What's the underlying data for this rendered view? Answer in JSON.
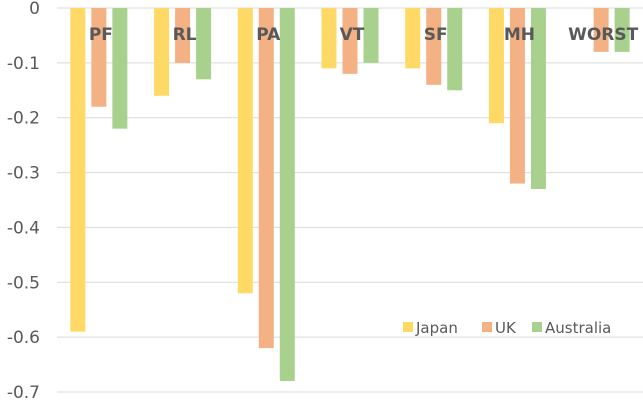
{
  "chart_data": {
    "type": "bar",
    "categories": [
      "PF",
      "RL",
      "PA",
      "VT",
      "SF",
      "MH",
      "WORST"
    ],
    "series": [
      {
        "name": "Japan",
        "color": "#FFD966",
        "values": [
          -0.59,
          -0.16,
          -0.52,
          -0.11,
          -0.11,
          -0.21,
          null
        ]
      },
      {
        "name": "UK",
        "color": "#F4B183",
        "values": [
          -0.18,
          -0.1,
          -0.62,
          -0.12,
          -0.14,
          -0.32,
          -0.08
        ]
      },
      {
        "name": "Australia",
        "color": "#A9D18E",
        "values": [
          -0.22,
          -0.13,
          -0.68,
          -0.1,
          -0.15,
          -0.33,
          -0.08
        ]
      }
    ],
    "ylim": [
      -0.7,
      0
    ],
    "yticks": [
      0,
      -0.1,
      -0.2,
      -0.3,
      -0.4,
      -0.5,
      -0.6,
      -0.7
    ],
    "ytick_labels": [
      "0",
      "-0.1",
      "-0.2",
      "-0.3",
      "-0.4",
      "-0.5",
      "-0.6",
      "-0.7"
    ],
    "grid": true,
    "legend_position": "bottom-right",
    "title": "",
    "xlabel": "",
    "ylabel": ""
  }
}
